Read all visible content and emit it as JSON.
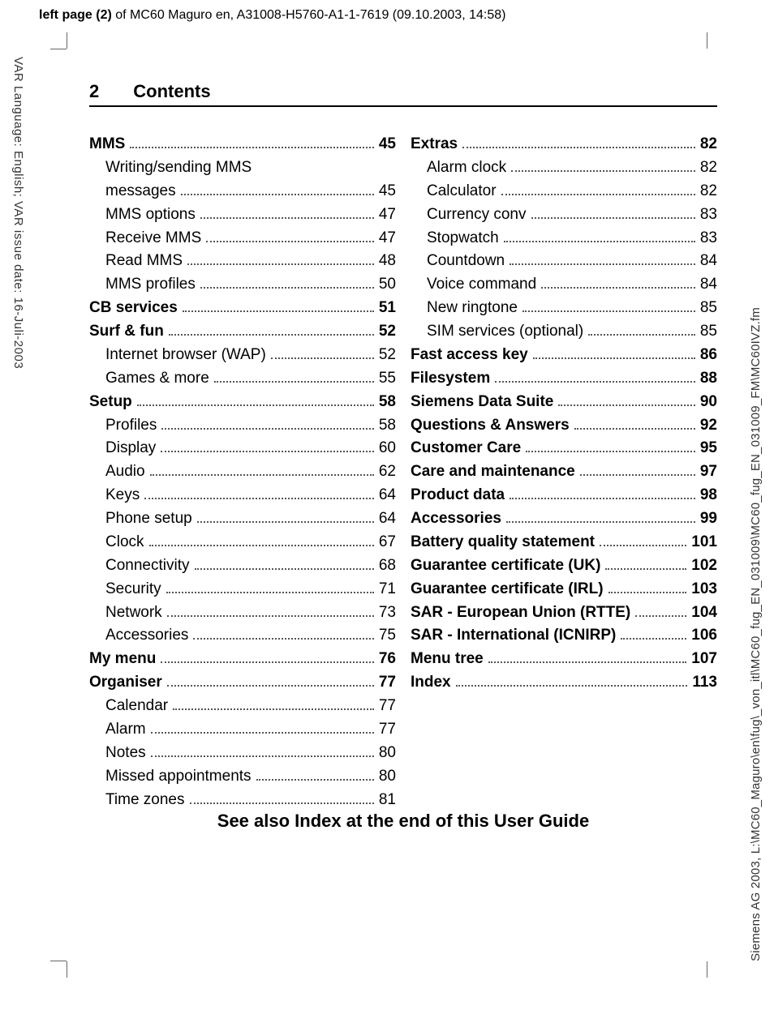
{
  "header": {
    "bold_part": "left page (2)",
    "rest": " of MC60 Maguro en, A31008-H5760-A1-1-7619 (09.10.2003, 14:58)"
  },
  "side_left": "VAR Language: English; VAR issue date: 16-Juli-2003",
  "side_right": "Siemens AG 2003, L:\\MC60_Maguro\\en\\fug\\_von_itl\\MC60_fug_EN_031009\\MC60_fug_EN_031009_FM\\MC60IVZ.fm",
  "page": {
    "number": "2",
    "title": "Contents"
  },
  "footer": "See also Index at the end of this User Guide",
  "toc_left": [
    {
      "label": "MMS",
      "page": "45",
      "level": "section"
    },
    {
      "label": "Writing/sending MMS messages",
      "page": "45",
      "level": "sub",
      "wrap": true
    },
    {
      "label": "MMS options",
      "page": "47",
      "level": "sub"
    },
    {
      "label": "Receive MMS",
      "page": "47",
      "level": "sub"
    },
    {
      "label": "Read MMS",
      "page": "48",
      "level": "sub"
    },
    {
      "label": "MMS profiles",
      "page": "50",
      "level": "sub"
    },
    {
      "label": "CB services",
      "page": "51",
      "level": "section"
    },
    {
      "label": "Surf & fun",
      "page": "52",
      "level": "section"
    },
    {
      "label": "Internet browser (WAP)",
      "page": "52",
      "level": "sub"
    },
    {
      "label": "Games & more",
      "page": "55",
      "level": "sub"
    },
    {
      "label": "Setup",
      "page": "58",
      "level": "section"
    },
    {
      "label": "Profiles",
      "page": "58",
      "level": "sub"
    },
    {
      "label": "Display",
      "page": "60",
      "level": "sub"
    },
    {
      "label": "Audio",
      "page": "62",
      "level": "sub"
    },
    {
      "label": "Keys",
      "page": "64",
      "level": "sub"
    },
    {
      "label": "Phone setup",
      "page": "64",
      "level": "sub"
    },
    {
      "label": "Clock",
      "page": "67",
      "level": "sub"
    },
    {
      "label": "Connectivity",
      "page": "68",
      "level": "sub"
    },
    {
      "label": "Security",
      "page": "71",
      "level": "sub"
    },
    {
      "label": "Network",
      "page": "73",
      "level": "sub"
    },
    {
      "label": "Accessories",
      "page": "75",
      "level": "sub"
    },
    {
      "label": "My menu",
      "page": "76",
      "level": "section"
    },
    {
      "label": "Organiser",
      "page": "77",
      "level": "section"
    },
    {
      "label": "Calendar",
      "page": "77",
      "level": "sub"
    },
    {
      "label": "Alarm",
      "page": "77",
      "level": "sub"
    },
    {
      "label": "Notes",
      "page": "80",
      "level": "sub"
    },
    {
      "label": "Missed appointments",
      "page": "80",
      "level": "sub"
    },
    {
      "label": "Time zones",
      "page": "81",
      "level": "sub"
    }
  ],
  "toc_right": [
    {
      "label": "Extras",
      "page": "82",
      "level": "section"
    },
    {
      "label": "Alarm clock",
      "page": "82",
      "level": "sub"
    },
    {
      "label": "Calculator",
      "page": "82",
      "level": "sub"
    },
    {
      "label": "Currency conv",
      "page": "83",
      "level": "sub"
    },
    {
      "label": "Stopwatch",
      "page": "83",
      "level": "sub"
    },
    {
      "label": "Countdown",
      "page": "84",
      "level": "sub"
    },
    {
      "label": "Voice command",
      "page": "84",
      "level": "sub"
    },
    {
      "label": "New ringtone",
      "page": "85",
      "level": "sub"
    },
    {
      "label": "SIM services (optional)",
      "page": "85",
      "level": "sub"
    },
    {
      "label": "Fast access key",
      "page": "86",
      "level": "section"
    },
    {
      "label": "Filesystem",
      "page": "88",
      "level": "section"
    },
    {
      "label": "Siemens Data Suite",
      "page": "90",
      "level": "section"
    },
    {
      "label": "Questions & Answers",
      "page": "92",
      "level": "section"
    },
    {
      "label": "Customer Care",
      "page": "95",
      "level": "section"
    },
    {
      "label": "Care and maintenance",
      "page": "97",
      "level": "section"
    },
    {
      "label": "Product data",
      "page": "98",
      "level": "section"
    },
    {
      "label": "Accessories",
      "page": "99",
      "level": "section"
    },
    {
      "label": "Battery quality statement",
      "page": "101",
      "level": "section"
    },
    {
      "label": "Guarantee certificate (UK)",
      "page": "102",
      "level": "section"
    },
    {
      "label": "Guarantee certificate (IRL)",
      "page": "103",
      "level": "section"
    },
    {
      "label": "SAR - European Union (RTTE)",
      "page": "104",
      "level": "section"
    },
    {
      "label": "SAR - International (ICNIRP)",
      "page": "106",
      "level": "section"
    },
    {
      "label": "Menu tree",
      "page": "107",
      "level": "section"
    },
    {
      "label": "Index",
      "page": "113",
      "level": "section"
    }
  ]
}
